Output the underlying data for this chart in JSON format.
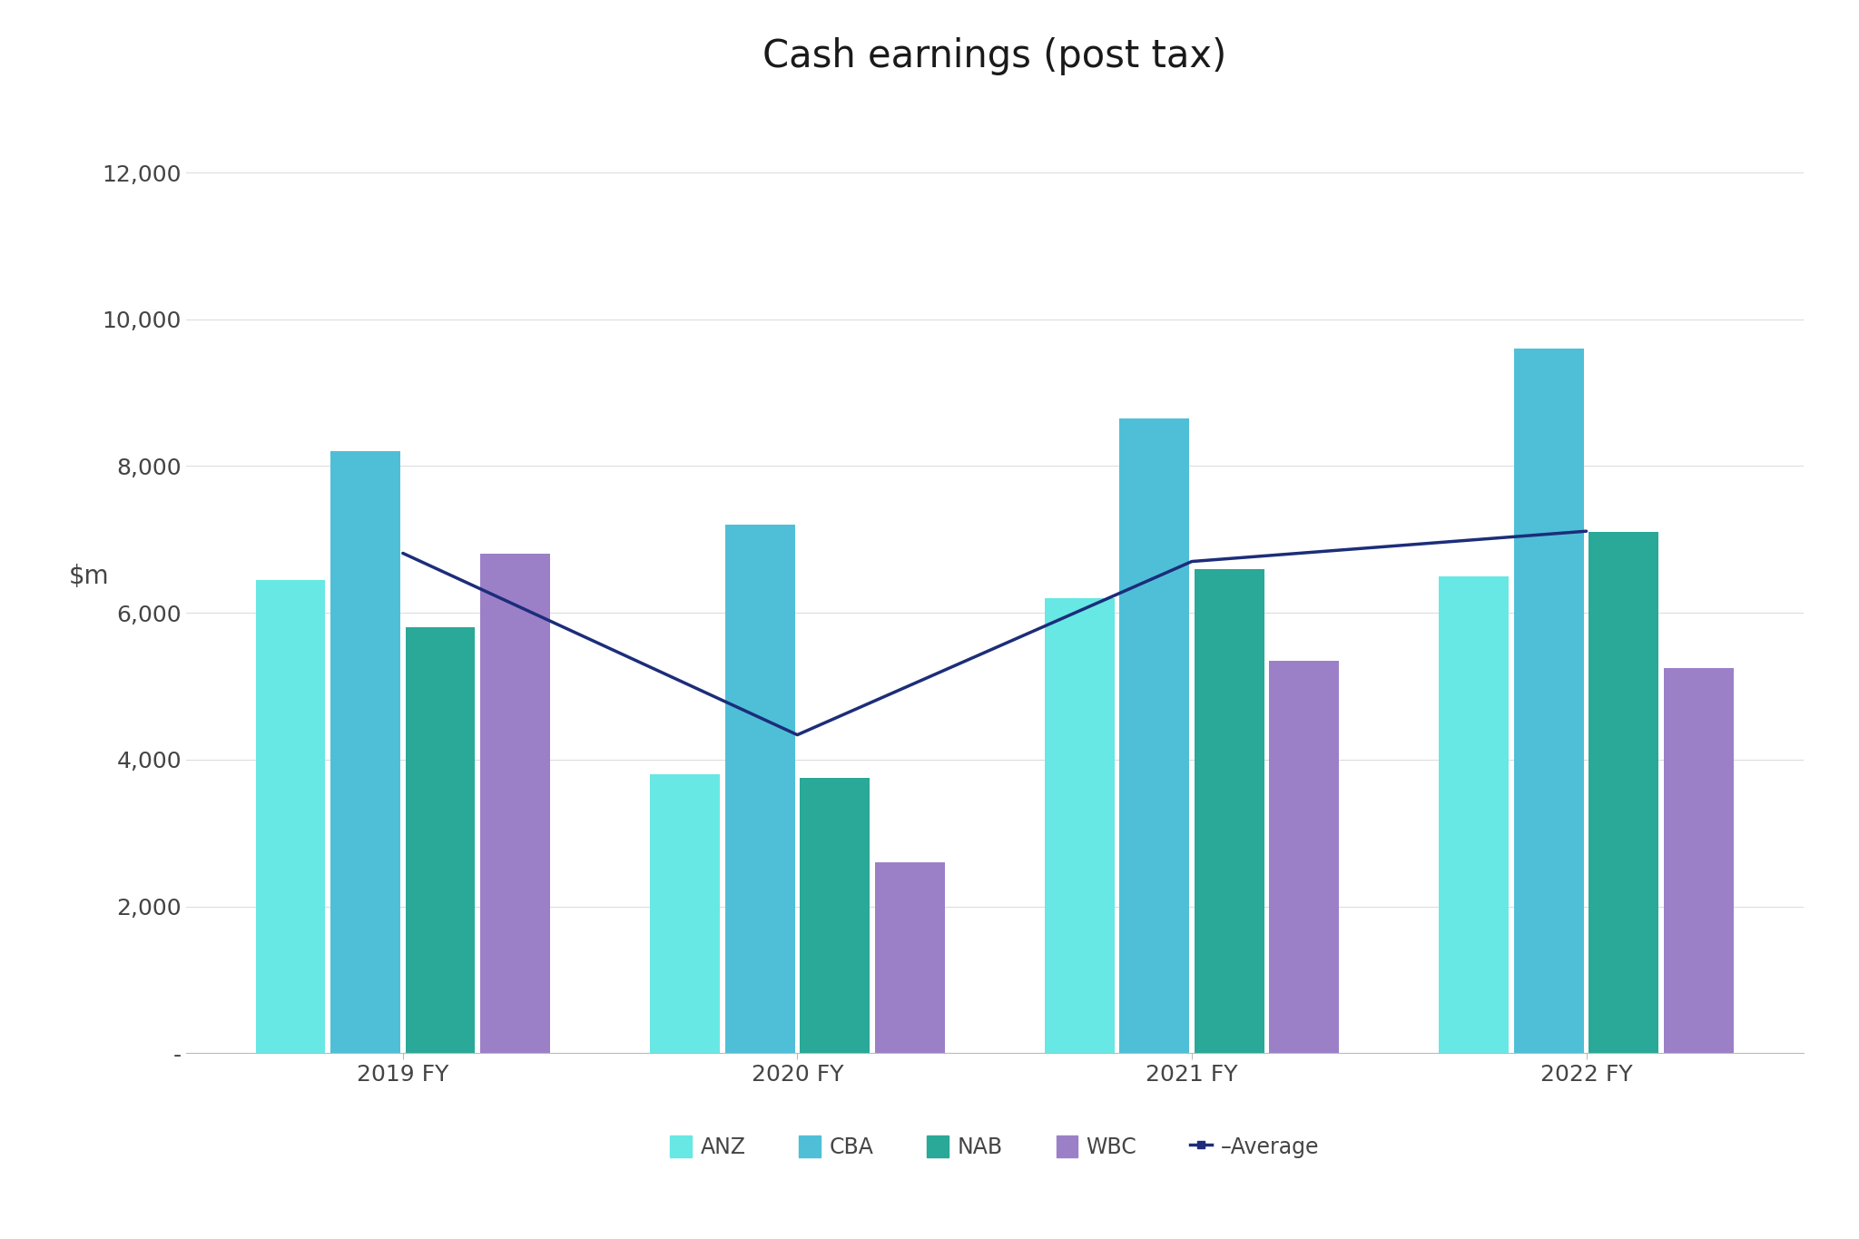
{
  "title": "Cash earnings (post tax)",
  "categories": [
    "2019 FY",
    "2020 FY",
    "2021 FY",
    "2022 FY"
  ],
  "series": {
    "ANZ": [
      6450,
      3800,
      6200,
      6500
    ],
    "CBA": [
      8200,
      7200,
      8650,
      9600
    ],
    "NAB": [
      5800,
      3750,
      6600,
      7100
    ],
    "WBC": [
      6800,
      2600,
      5350,
      5250
    ]
  },
  "average": [
    6812.5,
    4337.5,
    6700,
    7112.5
  ],
  "colors": {
    "ANZ": "#67E8E4",
    "CBA": "#4FBFD8",
    "NAB": "#2AA898",
    "WBC": "#9B80C8"
  },
  "average_color": "#1C2D7A",
  "ylim": [
    0,
    13000
  ],
  "yticks": [
    0,
    2000,
    4000,
    6000,
    8000,
    10000,
    12000
  ],
  "ytick_labels": [
    "-",
    "2,000",
    "4,000",
    "6,000",
    "8,000",
    "10,000",
    "12,000"
  ],
  "background_color": "#FFFFFF",
  "title_fontsize": 30,
  "axis_fontsize": 20,
  "tick_fontsize": 18,
  "legend_fontsize": 17,
  "bar_width": 0.19
}
